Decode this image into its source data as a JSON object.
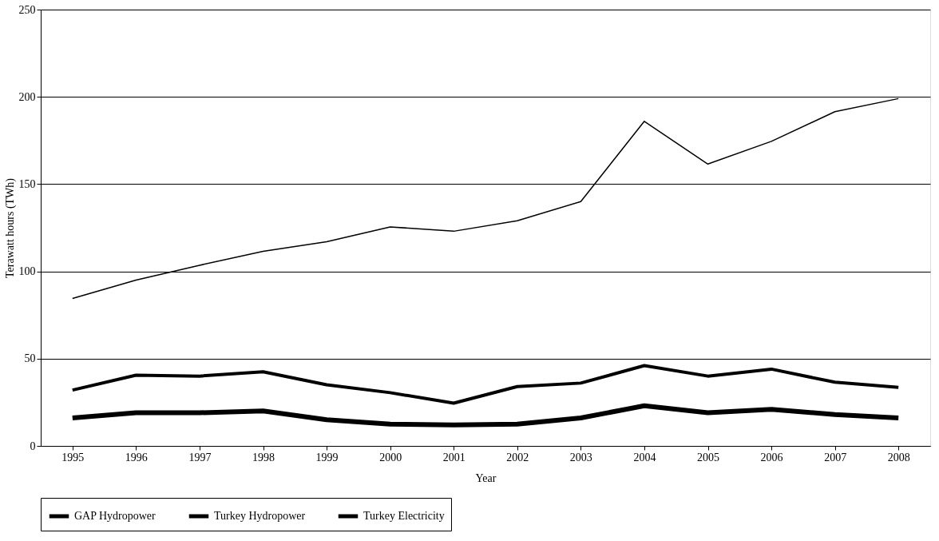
{
  "chart_data": {
    "type": "line",
    "xlabel": "Year",
    "ylabel": "Terawatt hours (TWh)",
    "categories": [
      "1995",
      "1996",
      "1997",
      "1998",
      "1999",
      "2000",
      "2001",
      "2002",
      "2003",
      "2004",
      "2005",
      "2006",
      "2007",
      "2008"
    ],
    "series": [
      {
        "name": "GAP Hydropower",
        "color": "#000000",
        "values": [
          16,
          19,
          19,
          20,
          15,
          12.5,
          12,
          12.5,
          16,
          23,
          19,
          21,
          18,
          16
        ]
      },
      {
        "name": "Turkey Hydropower",
        "color": "#000000",
        "values": [
          32,
          40.5,
          40,
          42.5,
          35,
          30.5,
          24.5,
          34,
          36,
          46,
          40,
          44,
          36.5,
          33.5
        ]
      },
      {
        "name": "Turkey Electricity",
        "color": "#000000",
        "values": [
          84.5,
          95,
          103.5,
          111.5,
          117,
          125.5,
          123,
          129,
          140,
          186,
          161.5,
          174.5,
          191.5,
          199
        ]
      }
    ],
    "ylim": [
      0,
      250
    ],
    "yticks": [
      0,
      50,
      100,
      150,
      200,
      250
    ],
    "grid": "y",
    "legend": "bottom",
    "marker": "none",
    "line_style": "solid"
  }
}
